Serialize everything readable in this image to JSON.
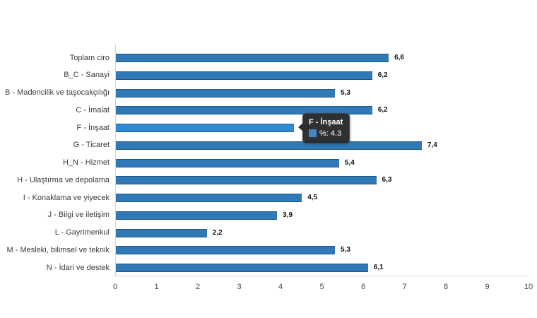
{
  "chart_data": {
    "type": "bar",
    "orientation": "horizontal",
    "title": "",
    "xlabel": "",
    "ylabel": "",
    "categories": [
      "Toplam ciro",
      "B_C - Sanayi",
      "B - Madencilik ve taşocakçılığı",
      "C - İmalat",
      "F - İnşaat",
      "G - Ticaret",
      "H_N - Hizmet",
      "H - Ulaştırma ve depolama",
      "I - Konaklama ve yiyecek",
      "J - Bilgi ve iletişim",
      "L - Gayrimenkul",
      "M - Mesleki, bilimsel ve teknik",
      "N - İdari ve destek"
    ],
    "values": [
      6.6,
      6.2,
      5.3,
      6.2,
      4.3,
      7.4,
      5.4,
      6.3,
      4.5,
      3.9,
      2.2,
      5.3,
      6.1
    ],
    "value_labels": [
      "6,6",
      "6,2",
      "5,3",
      "6,2",
      "4,3",
      "7,4",
      "5,4",
      "6,3",
      "4,5",
      "3,9",
      "2,2",
      "5,3",
      "6,1"
    ],
    "xlim": [
      0,
      10
    ],
    "x_ticks": [
      "0",
      "1",
      "2",
      "3",
      "4",
      "5",
      "6",
      "7",
      "8",
      "9",
      "10"
    ],
    "grid": false,
    "legend": "none",
    "bar_color": "#2e79b6",
    "bar_hover_color": "#2f8ad1",
    "highlighted_index": 4,
    "axis_color": "#d6d6d6"
  },
  "tooltip": {
    "title": "F - İnşaat",
    "value_text": "%: 4.3",
    "swatch_color": "#4286c5",
    "bg_color": "#26282a"
  }
}
